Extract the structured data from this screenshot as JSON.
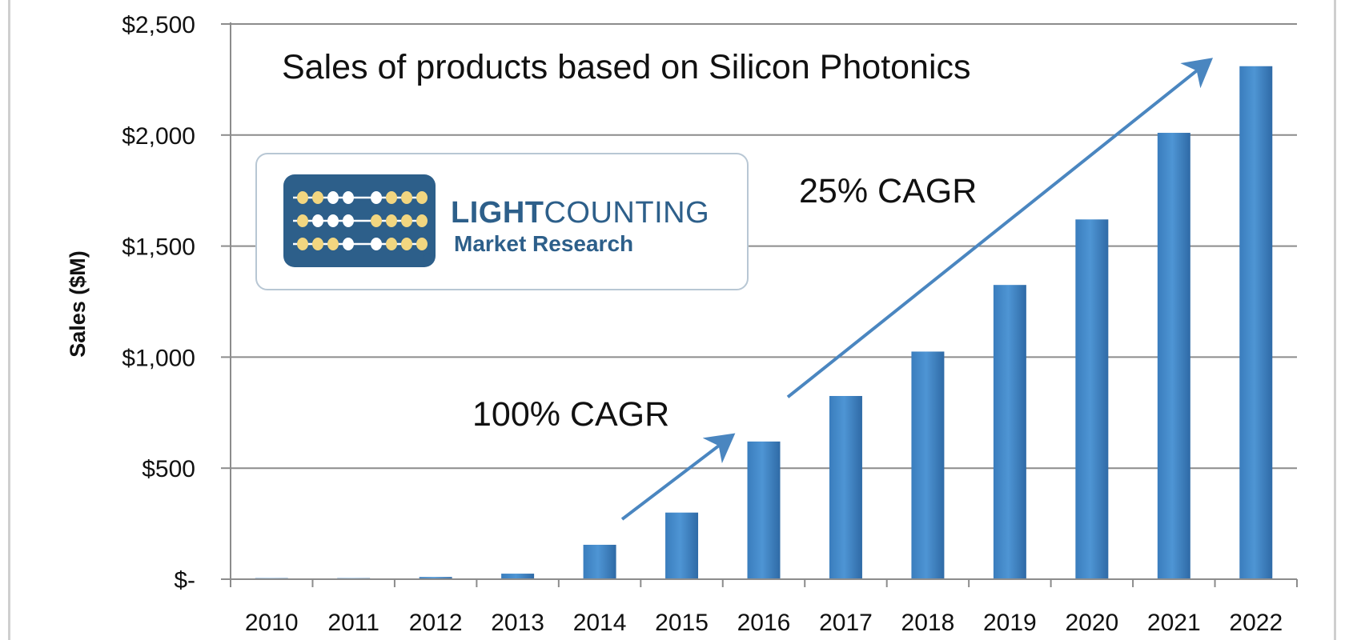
{
  "chart_data": {
    "type": "bar",
    "title": "Sales of products based on Silicon Photonics",
    "ylabel": "Sales ($M)",
    "xlabel": "",
    "categories": [
      "2010",
      "2011",
      "2012",
      "2013",
      "2014",
      "2015",
      "2016",
      "2017",
      "2018",
      "2019",
      "2020",
      "2021",
      "2022"
    ],
    "values": [
      5,
      5,
      10,
      25,
      155,
      300,
      620,
      825,
      1025,
      1325,
      1620,
      2010,
      2310
    ],
    "ylim": [
      0,
      2500
    ],
    "yticks": [
      0,
      500,
      1000,
      1500,
      2000,
      2500
    ],
    "ytick_labels": [
      "$-",
      "$500",
      "$1,000",
      "$1,500",
      "$2,000",
      "$2,500"
    ],
    "grid": true,
    "legend": "none",
    "bar_color": "#3f86c6",
    "annotations": [
      {
        "text": "100% CAGR",
        "arrow_from": {
          "x": "2014",
          "y": 270
        },
        "arrow_to": {
          "x": "2016",
          "y": 640
        }
      },
      {
        "text": "25% CAGR",
        "arrow_from": {
          "x": "2016",
          "y": 820
        },
        "arrow_to": {
          "x": "2022",
          "y": 2330
        }
      }
    ]
  },
  "logo": {
    "brand_bold": "LIGHT",
    "brand_regular": "COUNTING",
    "subtitle": "Market Research",
    "color": "#2d5f8a",
    "accent": "#f2d680"
  }
}
